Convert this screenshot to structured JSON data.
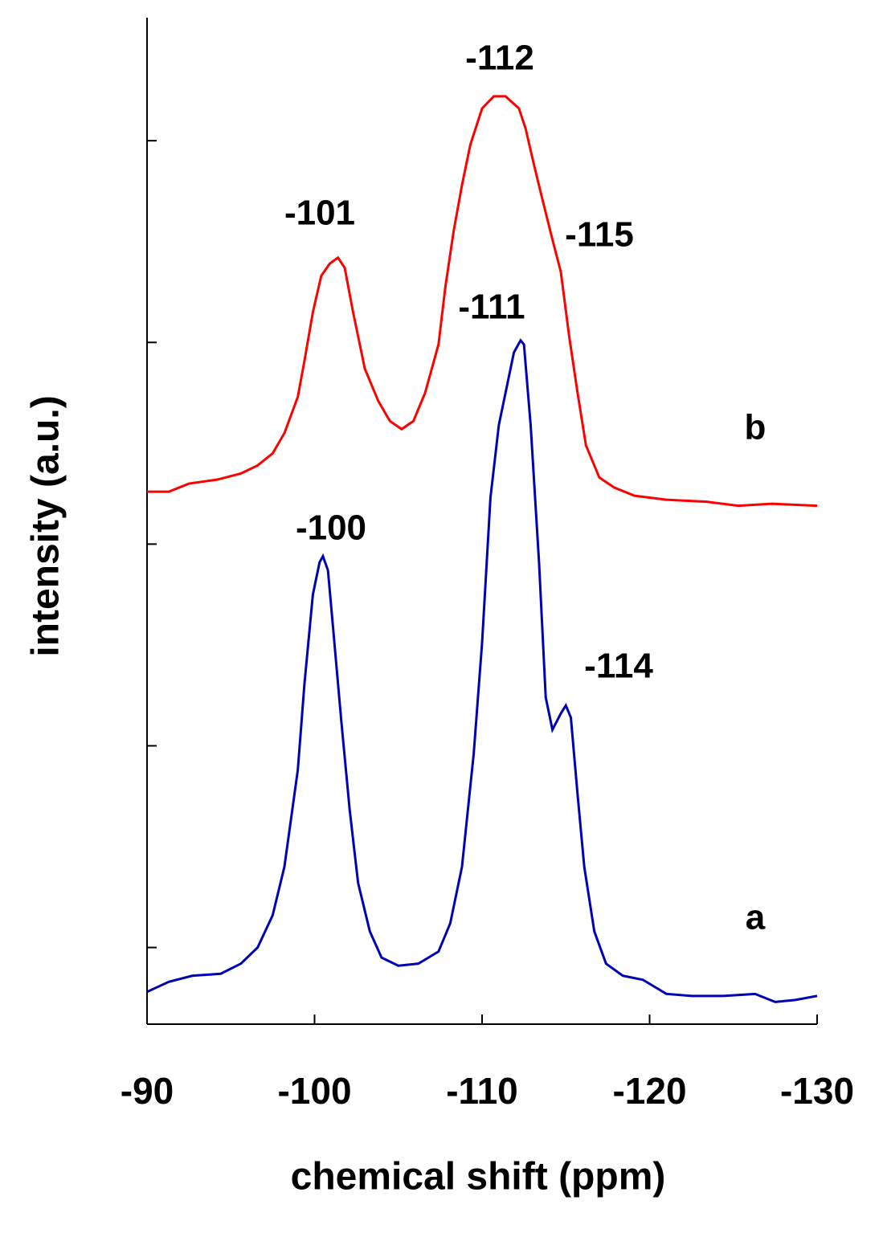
{
  "chart_data": {
    "type": "line",
    "x_label": "chemical shift (ppm)",
    "y_label": "intensity (a.u.)",
    "xlim": [
      -90,
      -130
    ],
    "xticks": [
      -90,
      -100,
      -110,
      -120,
      -130
    ],
    "ylim": [
      0.62,
      5.61
    ],
    "yticks": [
      1,
      2,
      3,
      4,
      5
    ],
    "series": [
      {
        "name": "a",
        "color": "#0000b4",
        "x": [
          -90.0,
          -91.3,
          -92.7,
          -94.4,
          -95.6,
          -96.6,
          -97.5,
          -98.2,
          -99.0,
          -99.4,
          -99.9,
          -100.3,
          -100.5,
          -100.8,
          -101.1,
          -101.6,
          -102.1,
          -102.6,
          -103.3,
          -104.0,
          -105.0,
          -106.2,
          -107.4,
          -108.1,
          -108.8,
          -109.5,
          -110.0,
          -110.5,
          -111.0,
          -111.4,
          -111.9,
          -112.3,
          -112.5,
          -112.9,
          -113.4,
          -113.8,
          -114.2,
          -114.7,
          -115.0,
          -115.3,
          -115.7,
          -116.1,
          -116.7,
          -117.4,
          -118.4,
          -119.6,
          -121.0,
          -122.5,
          -124.4,
          -126.3,
          -127.5,
          -128.7,
          -130.0
        ],
        "values": [
          0.78,
          0.83,
          0.86,
          0.87,
          0.92,
          1.0,
          1.16,
          1.4,
          1.88,
          2.31,
          2.75,
          2.91,
          2.94,
          2.87,
          2.59,
          2.12,
          1.68,
          1.32,
          1.08,
          0.95,
          0.91,
          0.92,
          0.98,
          1.12,
          1.4,
          1.96,
          2.51,
          3.23,
          3.59,
          3.75,
          3.95,
          4.01,
          3.99,
          3.59,
          2.91,
          2.24,
          2.08,
          2.16,
          2.2,
          2.14,
          1.76,
          1.4,
          1.08,
          0.92,
          0.86,
          0.84,
          0.77,
          0.76,
          0.76,
          0.77,
          0.73,
          0.74,
          0.76
        ]
      },
      {
        "name": "b",
        "color": "#ff0000",
        "x": [
          -90.0,
          -91.3,
          -92.5,
          -94.2,
          -95.6,
          -96.6,
          -97.5,
          -98.2,
          -99.0,
          -99.4,
          -99.9,
          -100.4,
          -100.9,
          -101.4,
          -101.8,
          -102.3,
          -103.0,
          -103.8,
          -104.5,
          -105.2,
          -105.9,
          -106.6,
          -107.4,
          -107.8,
          -108.3,
          -108.8,
          -109.3,
          -110.0,
          -110.7,
          -111.4,
          -112.2,
          -112.6,
          -113.1,
          -113.6,
          -114.2,
          -114.7,
          -115.2,
          -115.7,
          -116.2,
          -117.0,
          -117.9,
          -119.1,
          -121.0,
          -123.4,
          -125.3,
          -127.3,
          -130.0
        ],
        "values": [
          3.26,
          3.26,
          3.3,
          3.32,
          3.35,
          3.39,
          3.45,
          3.55,
          3.73,
          3.91,
          4.15,
          4.33,
          4.39,
          4.42,
          4.37,
          4.15,
          3.87,
          3.71,
          3.61,
          3.57,
          3.61,
          3.75,
          3.99,
          4.27,
          4.55,
          4.78,
          4.98,
          5.16,
          5.22,
          5.22,
          5.16,
          5.06,
          4.88,
          4.71,
          4.51,
          4.35,
          4.03,
          3.75,
          3.49,
          3.33,
          3.28,
          3.24,
          3.22,
          3.21,
          3.19,
          3.2,
          3.19
        ]
      }
    ],
    "annotations": [
      "-101",
      "-112",
      "-115",
      "-111",
      "-100",
      "-114"
    ]
  }
}
